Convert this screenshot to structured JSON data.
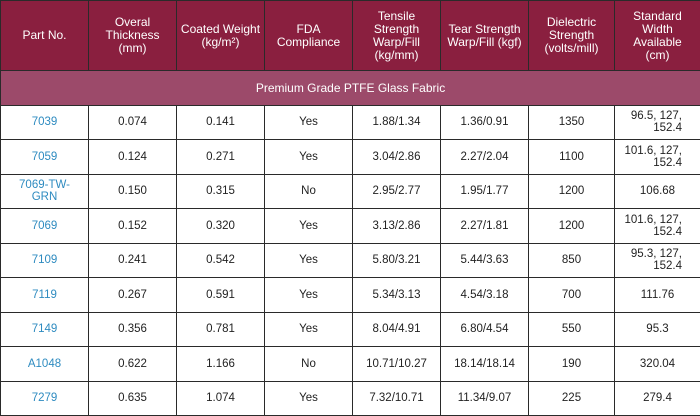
{
  "colors": {
    "header_bg": "#8a1f3f",
    "section_bg": "#9c4a6a",
    "header_text": "#ffffff",
    "link": "#2e8bc0",
    "border": "#2a2a2a"
  },
  "table": {
    "headers": [
      {
        "lines": [
          "Part No."
        ]
      },
      {
        "lines": [
          "Overal",
          "Thickness",
          "(mm)"
        ]
      },
      {
        "lines": [
          "Coated Weight",
          "(kg/m²)"
        ]
      },
      {
        "lines": [
          "FDA",
          "Compliance"
        ]
      },
      {
        "lines": [
          "Tensile",
          "Strength",
          "Warp/Fill",
          "(kg/mm)"
        ]
      },
      {
        "lines": [
          "Tear Strength",
          "Warp/Fill (kgf)"
        ]
      },
      {
        "lines": [
          "Dielectric",
          "Strength",
          "(volts/mill)"
        ]
      },
      {
        "lines": [
          "Standard",
          "Width",
          "Available",
          "(cm)"
        ]
      }
    ],
    "section_title": "Premium Grade PTFE Glass Fabric",
    "rows": [
      {
        "part": [
          "7039"
        ],
        "thickness": "0.074",
        "weight": "0.141",
        "fda": "Yes",
        "tensile": "1.88/1.34",
        "tear": "1.36/0.91",
        "dielectric": "1350",
        "width": [
          "96.5, 127,",
          "152.4"
        ]
      },
      {
        "part": [
          "7059"
        ],
        "thickness": "0.124",
        "weight": "0.271",
        "fda": "Yes",
        "tensile": "3.04/2.86",
        "tear": "2.27/2.04",
        "dielectric": "1100",
        "width": [
          "101.6, 127,",
          "152.4"
        ]
      },
      {
        "part": [
          "7069-TW-",
          "GRN"
        ],
        "thickness": "0.150",
        "weight": "0.315",
        "fda": "No",
        "tensile": "2.95/2.77",
        "tear": "1.95/1.77",
        "dielectric": "1200",
        "width": [
          "106.68"
        ]
      },
      {
        "part": [
          "7069"
        ],
        "thickness": "0.152",
        "weight": "0.320",
        "fda": "Yes",
        "tensile": "3.13/2.86",
        "tear": "2.27/1.81",
        "dielectric": "1200",
        "width": [
          "101.6, 127,",
          "152.4"
        ]
      },
      {
        "part": [
          "7109"
        ],
        "thickness": "0.241",
        "weight": "0.542",
        "fda": "Yes",
        "tensile": "5.80/3.21",
        "tear": "5.44/3.63",
        "dielectric": "850",
        "width": [
          "95.3, 127,",
          "152.4"
        ]
      },
      {
        "part": [
          "7119"
        ],
        "thickness": "0.267",
        "weight": "0.591",
        "fda": "Yes",
        "tensile": "5.34/3.13",
        "tear": "4.54/3.18",
        "dielectric": "700",
        "width": [
          "111.76"
        ]
      },
      {
        "part": [
          "7149"
        ],
        "thickness": "0.356",
        "weight": "0.781",
        "fda": "Yes",
        "tensile": "8.04/4.91",
        "tear": "6.80/4.54",
        "dielectric": "550",
        "width": [
          "95.3"
        ]
      },
      {
        "part": [
          "A1048"
        ],
        "thickness": "0.622",
        "weight": "1.166",
        "fda": "No",
        "tensile": "10.71/10.27",
        "tear": "18.14/18.14",
        "dielectric": "190",
        "width": [
          "320.04"
        ]
      },
      {
        "part": [
          "7279"
        ],
        "thickness": "0.635",
        "weight": "1.074",
        "fda": "Yes",
        "tensile": "7.32/10.71",
        "tear": "11.34/9.07",
        "dielectric": "225",
        "width": [
          "279.4"
        ]
      }
    ]
  }
}
